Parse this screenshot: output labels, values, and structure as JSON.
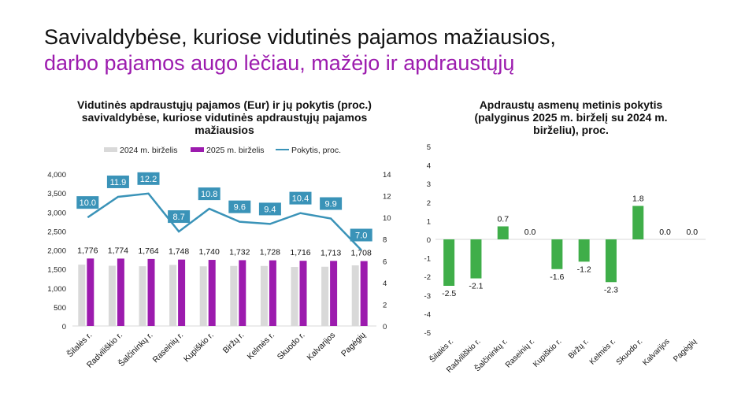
{
  "heading": {
    "line1": "Savivaldybėse, kuriose vidutinės pajamos mažiausios,",
    "line2": "darbo pajamos augo lėčiau, mažėjo ir apdraustųjų"
  },
  "colors": {
    "s2024": "#d9d9d9",
    "s2025": "#9c1bae",
    "line": "#3a93b8",
    "green": "#3fae49",
    "headline_accent": "#9c1bae"
  },
  "chart_data": [
    {
      "type": "bar+line",
      "title": "Vidutinės apdraustųjų pajamos (Eur) ir jų pokytis (proc.) savivaldybėse, kuriose vidutinės apdraustųjų pajamos mažiausios",
      "categories": [
        "Šilalės r.",
        "Radviliškio r.",
        "Šalčininkų r.",
        "Raseinių r.",
        "Kupiškio r.",
        "Biržų r.",
        "Kelmės r.",
        "Skuodo r.",
        "Kalvarijos",
        "Pagėgių"
      ],
      "series": [
        {
          "name": "2024 m. birželis",
          "type": "bar",
          "axis": "left",
          "values": [
            1615,
            1585,
            1572,
            1608,
            1570,
            1580,
            1580,
            1554,
            1559,
            1596
          ]
        },
        {
          "name": "2025 m. birželis",
          "type": "bar",
          "axis": "left",
          "values": [
            1776,
            1774,
            1764,
            1748,
            1740,
            1732,
            1728,
            1716,
            1713,
            1708
          ],
          "labels": [
            "1,776",
            "1,774",
            "1,764",
            "1,748",
            "1,740",
            "1,732",
            "1,728",
            "1,716",
            "1,713",
            "1,708"
          ]
        },
        {
          "name": "Pokytis, proc.",
          "type": "line",
          "axis": "right",
          "values": [
            10.0,
            11.9,
            12.2,
            8.7,
            10.8,
            9.6,
            9.4,
            10.4,
            9.9,
            7.0
          ],
          "labels": [
            "10.0",
            "11.9",
            "12.2",
            "8.7",
            "10.8",
            "9.6",
            "9.4",
            "10.4",
            "9.9",
            "7.0"
          ]
        }
      ],
      "ylim": [
        0,
        4000
      ],
      "yticks": [
        "0",
        "500",
        "1,000",
        "1,500",
        "2,000",
        "2,500",
        "3,000",
        "3,500",
        "4,000"
      ],
      "y2lim": [
        0,
        14
      ],
      "y2ticks": [
        "0",
        "2",
        "4",
        "6",
        "8",
        "10",
        "12",
        "14"
      ],
      "legend": "top",
      "grid": false
    },
    {
      "type": "bar",
      "title": "Apdraustų asmenų metinis pokytis (palyginus 2025 m. birželį su 2024 m. birželiu), proc.",
      "categories": [
        "Šilalės r.",
        "Radviliškio r.",
        "Šalčininkų r.",
        "Raseinių r.",
        "Kupiškio r.",
        "Biržų r.",
        "Kelmės r.",
        "Skuodo r.",
        "Kalvarijos",
        "Pagėgių"
      ],
      "values": [
        -2.5,
        -2.1,
        0.7,
        0.0,
        -1.6,
        -1.2,
        -2.3,
        1.8,
        0.0,
        0.0
      ],
      "labels": [
        "-2.5",
        "-2.1",
        "0.7",
        "0.0",
        "-1.6",
        "-1.2",
        "-2.3",
        "1.8",
        "0.0",
        "0.0"
      ],
      "ylim": [
        -5,
        5
      ],
      "yticks": [
        "-5",
        "-4",
        "-3",
        "-2",
        "-1",
        "0",
        "1",
        "2",
        "3",
        "4",
        "5"
      ],
      "grid": false
    }
  ]
}
